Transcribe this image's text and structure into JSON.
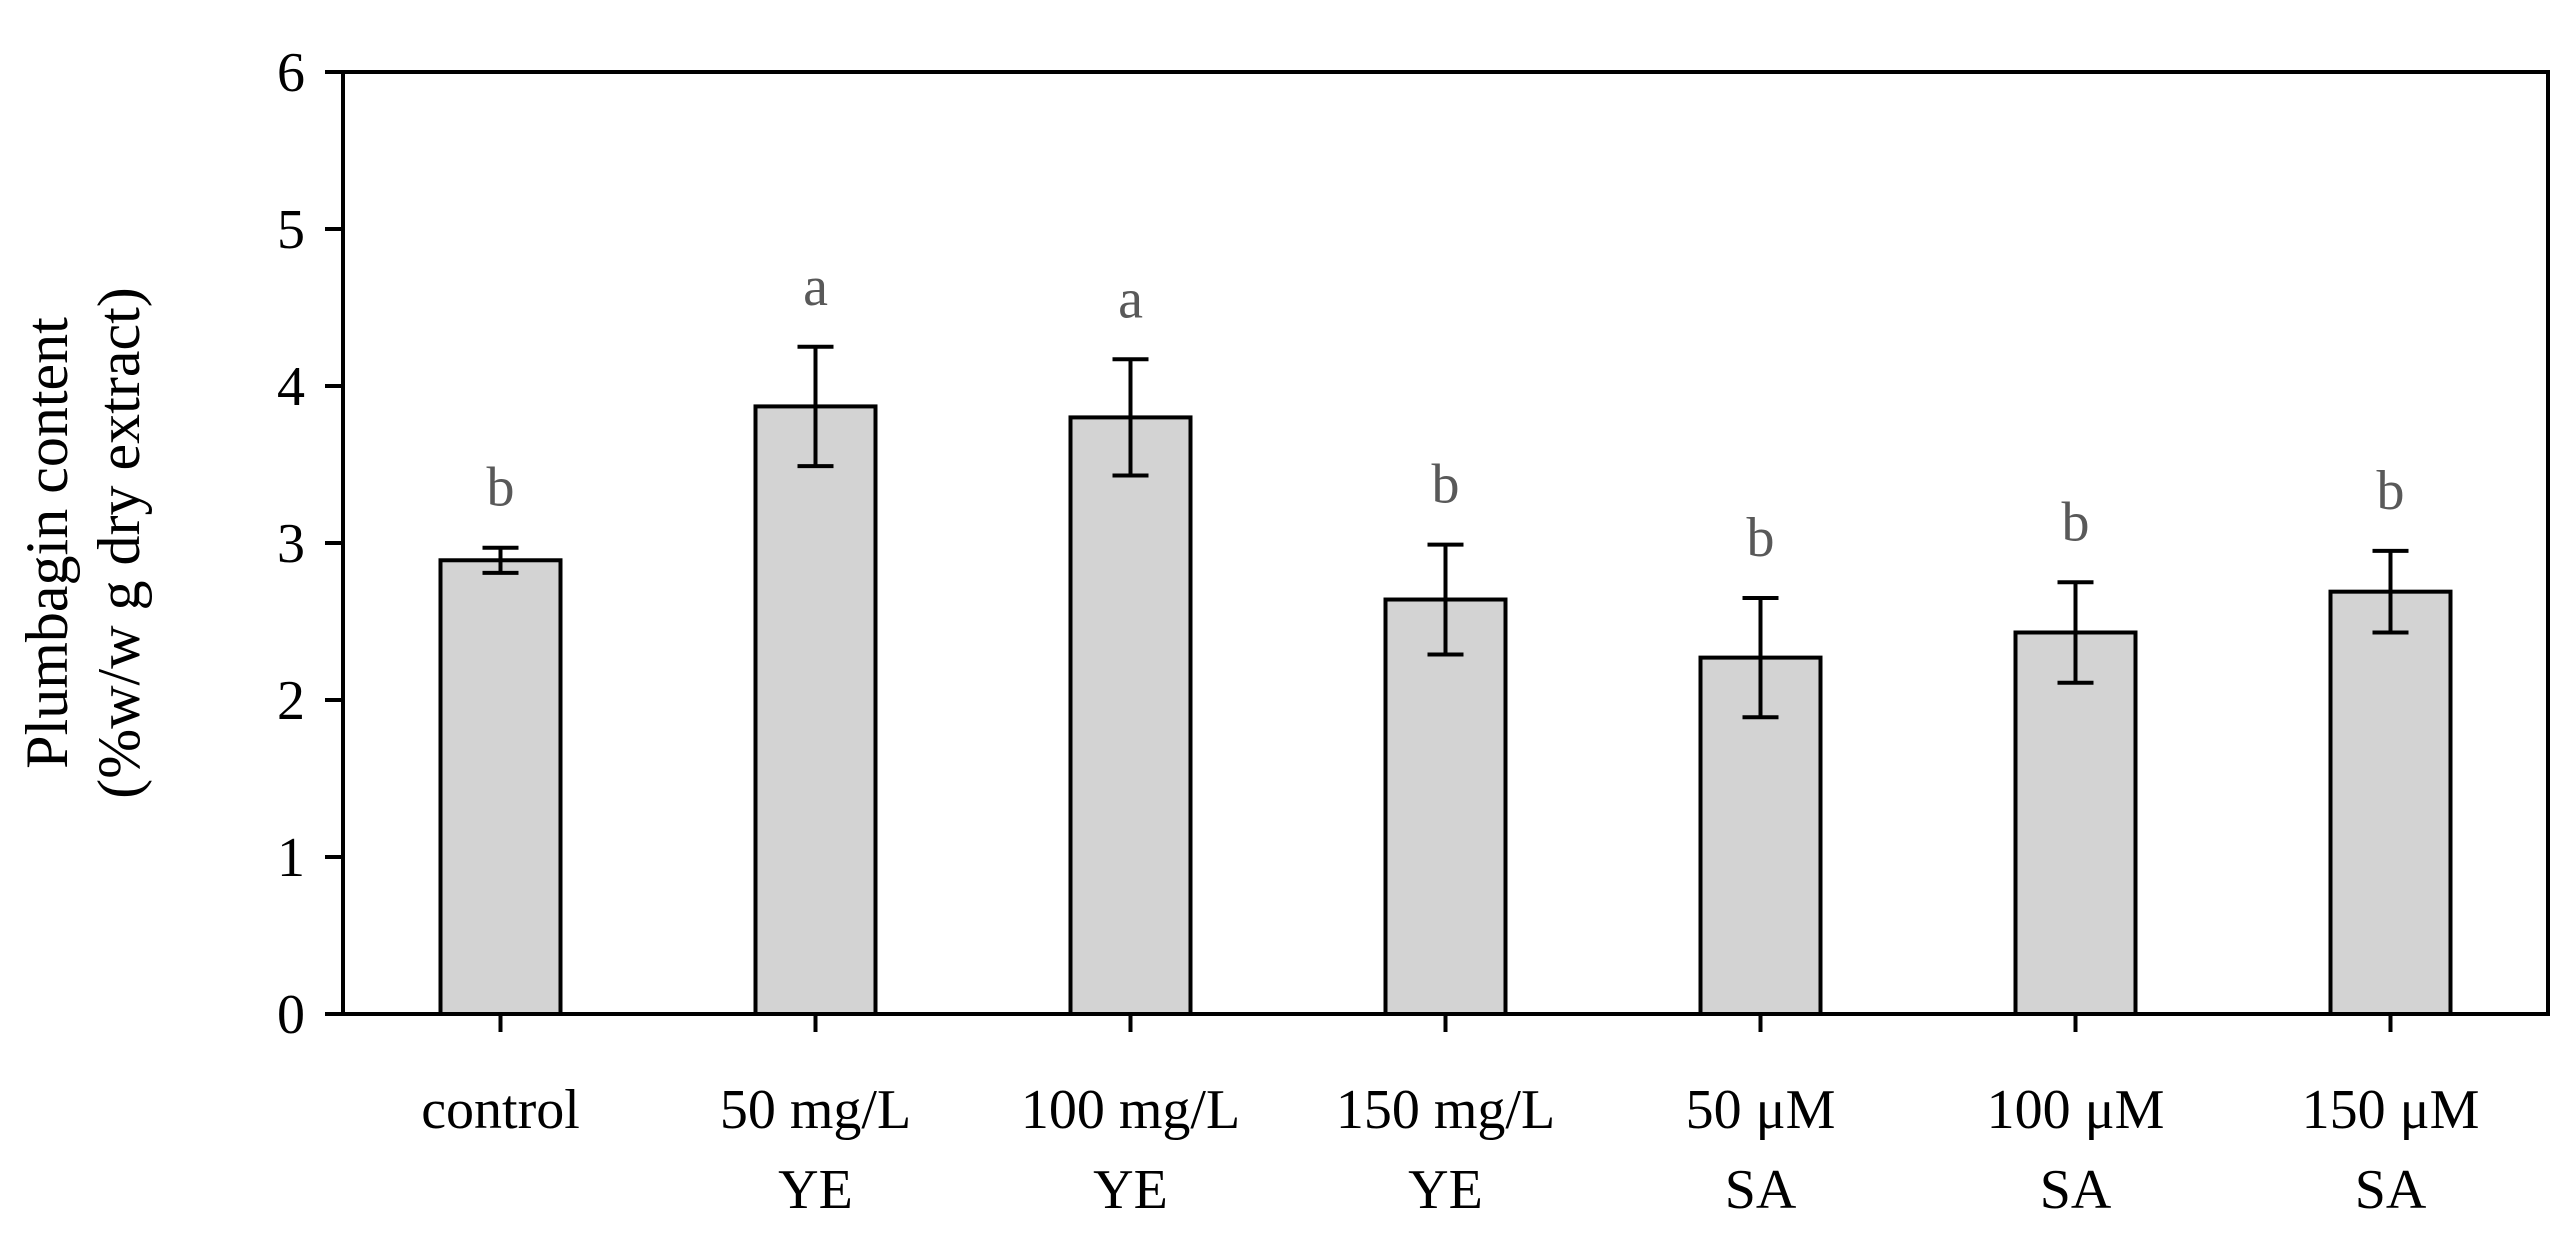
{
  "colors": {
    "bar_fill": "#d3d3d3",
    "bar_stroke": "#000000",
    "axis": "#000000",
    "sig_letter": "#595959"
  },
  "chart_data": {
    "type": "bar",
    "title": "",
    "xlabel": "",
    "ylabel_lines": [
      "Plumbagin content",
      "(%w/w g dry extract)"
    ],
    "ylim": [
      0,
      6
    ],
    "yticks": [
      0,
      1,
      2,
      3,
      4,
      5,
      6
    ],
    "grid": false,
    "categories": [
      [
        "control"
      ],
      [
        "50 mg/L",
        "YE"
      ],
      [
        "100 mg/L",
        "YE"
      ],
      [
        "150 mg/L",
        "YE"
      ],
      [
        "50 μM",
        "SA"
      ],
      [
        "100 μM",
        "SA"
      ],
      [
        "150 μM",
        "SA"
      ]
    ],
    "values": [
      2.89,
      3.87,
      3.8,
      2.64,
      2.27,
      2.43,
      2.69
    ],
    "errors": [
      0.08,
      0.38,
      0.37,
      0.35,
      0.38,
      0.32,
      0.26
    ],
    "significance": [
      "b",
      "a",
      "a",
      "b",
      "b",
      "b",
      "b"
    ]
  }
}
